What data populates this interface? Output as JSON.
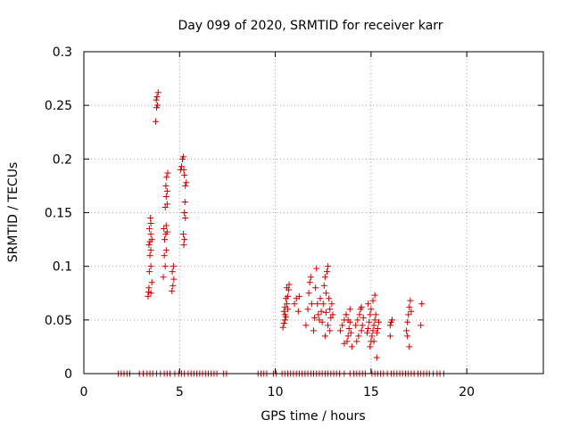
{
  "chart_data": {
    "type": "scatter",
    "title": "Day 099 of 2020, SRMTID for receiver karr",
    "xlabel": "GPS time / hours",
    "ylabel": "SRMTID / TECUs",
    "xlim": [
      0,
      24
    ],
    "ylim": [
      0,
      0.3
    ],
    "x_ticks": [
      0,
      5,
      10,
      15,
      20
    ],
    "x_tick_labels": [
      "0",
      "5",
      "10",
      "15",
      "20"
    ],
    "y_ticks": [
      0,
      0.05,
      0.1,
      0.15,
      0.2,
      0.25,
      0.3
    ],
    "y_tick_labels": [
      "0",
      "0.05",
      "0.1",
      "0.15",
      "0.2",
      "0.25",
      "0.3"
    ],
    "grid": true,
    "marker": "+",
    "color": "#cc0000",
    "series": [
      {
        "name": "SRMTID",
        "points": [
          [
            1.8,
            0
          ],
          [
            1.95,
            0
          ],
          [
            2.1,
            0
          ],
          [
            2.25,
            0
          ],
          [
            2.4,
            0
          ],
          [
            2.9,
            0
          ],
          [
            3.1,
            0
          ],
          [
            3.3,
            0
          ],
          [
            3.45,
            0
          ],
          [
            3.6,
            0
          ],
          [
            3.8,
            0
          ],
          [
            4.0,
            0
          ],
          [
            4.2,
            0
          ],
          [
            4.35,
            0
          ],
          [
            4.5,
            0
          ],
          [
            4.75,
            0
          ],
          [
            4.95,
            0
          ],
          [
            5.1,
            0
          ],
          [
            5.25,
            0
          ],
          [
            5.45,
            0
          ],
          [
            5.6,
            0
          ],
          [
            5.75,
            0
          ],
          [
            5.9,
            0
          ],
          [
            6.05,
            0
          ],
          [
            6.2,
            0
          ],
          [
            6.35,
            0
          ],
          [
            6.5,
            0
          ],
          [
            6.65,
            0
          ],
          [
            6.8,
            0
          ],
          [
            6.95,
            0
          ],
          [
            7.3,
            0
          ],
          [
            7.45,
            0
          ],
          [
            9.1,
            0
          ],
          [
            9.25,
            0
          ],
          [
            9.4,
            0
          ],
          [
            9.55,
            0
          ],
          [
            9.9,
            0
          ],
          [
            10.05,
            0
          ],
          [
            10.35,
            0
          ],
          [
            10.5,
            0
          ],
          [
            10.65,
            0
          ],
          [
            10.8,
            0
          ],
          [
            10.95,
            0
          ],
          [
            11.1,
            0
          ],
          [
            11.25,
            0
          ],
          [
            11.4,
            0
          ],
          [
            11.55,
            0
          ],
          [
            11.7,
            0
          ],
          [
            11.85,
            0
          ],
          [
            12.0,
            0
          ],
          [
            12.15,
            0
          ],
          [
            12.3,
            0
          ],
          [
            12.45,
            0
          ],
          [
            12.6,
            0
          ],
          [
            12.75,
            0
          ],
          [
            12.9,
            0
          ],
          [
            13.05,
            0
          ],
          [
            13.2,
            0
          ],
          [
            13.35,
            0
          ],
          [
            13.6,
            0
          ],
          [
            13.9,
            0
          ],
          [
            14.1,
            0
          ],
          [
            14.25,
            0
          ],
          [
            14.4,
            0
          ],
          [
            14.55,
            0
          ],
          [
            14.7,
            0
          ],
          [
            15.05,
            0
          ],
          [
            15.2,
            0
          ],
          [
            15.35,
            0
          ],
          [
            15.5,
            0
          ],
          [
            15.65,
            0
          ],
          [
            15.85,
            0
          ],
          [
            16.05,
            0
          ],
          [
            16.2,
            0
          ],
          [
            16.35,
            0
          ],
          [
            16.5,
            0
          ],
          [
            16.65,
            0
          ],
          [
            16.8,
            0
          ],
          [
            16.95,
            0
          ],
          [
            17.1,
            0
          ],
          [
            17.25,
            0
          ],
          [
            17.45,
            0
          ],
          [
            17.6,
            0
          ],
          [
            17.75,
            0
          ],
          [
            17.9,
            0
          ],
          [
            18.05,
            0
          ],
          [
            18.25,
            0
          ],
          [
            18.45,
            0
          ],
          [
            18.6,
            0
          ],
          [
            18.8,
            0
          ],
          [
            3.35,
            0.072
          ],
          [
            3.4,
            0.08
          ],
          [
            3.38,
            0.076
          ],
          [
            3.5,
            0.075
          ],
          [
            3.55,
            0.085
          ],
          [
            3.42,
            0.095
          ],
          [
            3.5,
            0.1
          ],
          [
            3.45,
            0.11
          ],
          [
            3.5,
            0.115
          ],
          [
            3.4,
            0.12
          ],
          [
            3.45,
            0.123
          ],
          [
            3.55,
            0.125
          ],
          [
            3.5,
            0.13
          ],
          [
            3.42,
            0.135
          ],
          [
            3.5,
            0.14
          ],
          [
            3.48,
            0.145
          ],
          [
            3.75,
            0.235
          ],
          [
            3.8,
            0.248
          ],
          [
            3.85,
            0.25
          ],
          [
            3.78,
            0.255
          ],
          [
            3.82,
            0.258
          ],
          [
            3.88,
            0.262
          ],
          [
            4.15,
            0.09
          ],
          [
            4.25,
            0.1
          ],
          [
            4.2,
            0.11
          ],
          [
            4.3,
            0.115
          ],
          [
            4.22,
            0.125
          ],
          [
            4.28,
            0.13
          ],
          [
            4.35,
            0.132
          ],
          [
            4.18,
            0.135
          ],
          [
            4.3,
            0.138
          ],
          [
            4.25,
            0.155
          ],
          [
            4.35,
            0.158
          ],
          [
            4.3,
            0.165
          ],
          [
            4.35,
            0.17
          ],
          [
            4.28,
            0.175
          ],
          [
            4.32,
            0.183
          ],
          [
            4.38,
            0.187
          ],
          [
            4.6,
            0.077
          ],
          [
            4.65,
            0.082
          ],
          [
            4.7,
            0.088
          ],
          [
            4.62,
            0.095
          ],
          [
            4.68,
            0.1
          ],
          [
            5.05,
            0.19
          ],
          [
            5.1,
            0.193
          ],
          [
            5.15,
            0.2
          ],
          [
            5.2,
            0.202
          ],
          [
            5.22,
            0.19
          ],
          [
            5.25,
            0.185
          ],
          [
            5.3,
            0.175
          ],
          [
            5.35,
            0.178
          ],
          [
            5.28,
            0.16
          ],
          [
            5.25,
            0.15
          ],
          [
            5.3,
            0.145
          ],
          [
            5.2,
            0.13
          ],
          [
            5.25,
            0.125
          ],
          [
            5.22,
            0.12
          ],
          [
            10.4,
            0.043
          ],
          [
            10.45,
            0.047
          ],
          [
            10.5,
            0.05
          ],
          [
            10.55,
            0.053
          ],
          [
            10.45,
            0.058
          ],
          [
            10.5,
            0.062
          ],
          [
            10.6,
            0.065
          ],
          [
            10.55,
            0.07
          ],
          [
            10.65,
            0.072
          ],
          [
            10.7,
            0.078
          ],
          [
            10.6,
            0.08
          ],
          [
            10.72,
            0.083
          ],
          [
            10.5,
            0.055
          ],
          [
            10.65,
            0.06
          ],
          [
            11.0,
            0.065
          ],
          [
            11.1,
            0.07
          ],
          [
            11.2,
            0.058
          ],
          [
            11.25,
            0.072
          ],
          [
            11.6,
            0.045
          ],
          [
            11.7,
            0.06
          ],
          [
            11.75,
            0.075
          ],
          [
            11.8,
            0.085
          ],
          [
            11.85,
            0.09
          ],
          [
            11.9,
            0.065
          ],
          [
            12.0,
            0.04
          ],
          [
            12.05,
            0.052
          ],
          [
            12.1,
            0.08
          ],
          [
            12.15,
            0.098
          ],
          [
            12.2,
            0.065
          ],
          [
            12.25,
            0.055
          ],
          [
            12.3,
            0.05
          ],
          [
            12.35,
            0.07
          ],
          [
            12.4,
            0.058
          ],
          [
            12.45,
            0.048
          ],
          [
            12.5,
            0.065
          ],
          [
            12.55,
            0.082
          ],
          [
            12.6,
            0.09
          ],
          [
            12.65,
            0.075
          ],
          [
            12.7,
            0.095
          ],
          [
            12.75,
            0.1
          ],
          [
            12.8,
            0.07
          ],
          [
            12.85,
            0.06
          ],
          [
            12.9,
            0.052
          ],
          [
            12.95,
            0.065
          ],
          [
            13.0,
            0.055
          ],
          [
            12.75,
            0.045
          ],
          [
            12.85,
            0.04
          ],
          [
            12.6,
            0.035
          ],
          [
            12.65,
            0.057
          ],
          [
            13.4,
            0.04
          ],
          [
            13.5,
            0.045
          ],
          [
            13.6,
            0.05
          ],
          [
            13.7,
            0.055
          ],
          [
            13.75,
            0.03
          ],
          [
            13.8,
            0.035
          ],
          [
            13.85,
            0.042
          ],
          [
            13.9,
            0.048
          ],
          [
            13.95,
            0.038
          ],
          [
            14.0,
            0.025
          ],
          [
            13.6,
            0.028
          ],
          [
            13.7,
            0.055
          ],
          [
            13.8,
            0.05
          ],
          [
            13.9,
            0.06
          ],
          [
            14.2,
            0.045
          ],
          [
            14.3,
            0.05
          ],
          [
            14.4,
            0.055
          ],
          [
            14.45,
            0.06
          ],
          [
            14.5,
            0.04
          ],
          [
            14.35,
            0.035
          ],
          [
            14.25,
            0.03
          ],
          [
            14.55,
            0.045
          ],
          [
            14.6,
            0.052
          ],
          [
            14.5,
            0.062
          ],
          [
            14.8,
            0.038
          ],
          [
            14.85,
            0.042
          ],
          [
            14.9,
            0.048
          ],
          [
            14.95,
            0.055
          ],
          [
            15.0,
            0.03
          ],
          [
            15.05,
            0.035
          ],
          [
            15.1,
            0.04
          ],
          [
            15.15,
            0.045
          ],
          [
            15.2,
            0.05
          ],
          [
            15.25,
            0.055
          ],
          [
            15.3,
            0.038
          ],
          [
            15.35,
            0.042
          ],
          [
            15.4,
            0.048
          ],
          [
            14.95,
            0.025
          ],
          [
            15.1,
            0.068
          ],
          [
            15.2,
            0.073
          ],
          [
            15.0,
            0.06
          ],
          [
            15.3,
            0.015
          ],
          [
            15.15,
            0.03
          ],
          [
            14.85,
            0.065
          ],
          [
            16.0,
            0.035
          ],
          [
            16.05,
            0.048
          ],
          [
            16.1,
            0.05
          ],
          [
            16.0,
            0.045
          ],
          [
            16.85,
            0.04
          ],
          [
            16.9,
            0.048
          ],
          [
            16.95,
            0.055
          ],
          [
            17.0,
            0.062
          ],
          [
            17.05,
            0.068
          ],
          [
            17.1,
            0.058
          ],
          [
            16.9,
            0.035
          ],
          [
            17.0,
            0.025
          ],
          [
            17.6,
            0.045
          ],
          [
            17.65,
            0.065
          ]
        ]
      }
    ]
  }
}
